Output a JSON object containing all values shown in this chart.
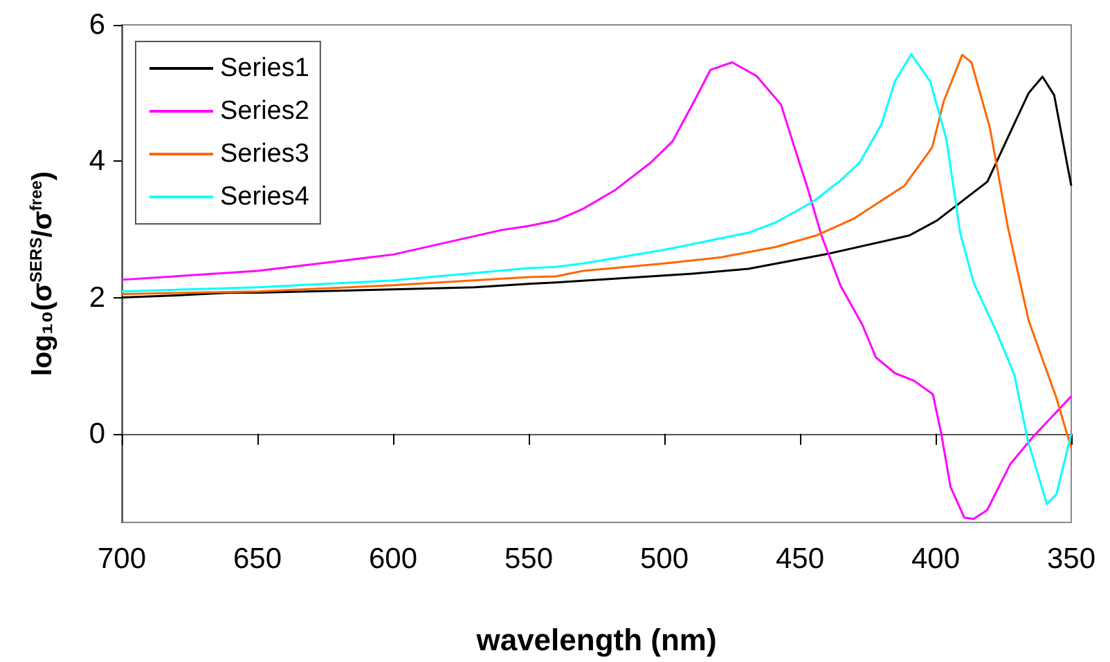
{
  "chart_data": {
    "type": "line",
    "xlabel": "wavelength (nm)",
    "ylabel": "log₁₀(σ$^{SERS}$/σ$^{free}$)",
    "xlim": [
      700,
      350
    ],
    "xticks": [
      700,
      650,
      600,
      550,
      500,
      450,
      400,
      350
    ],
    "ylim": [
      -1.3,
      6
    ],
    "yticks": [
      0,
      2,
      4,
      6
    ],
    "legend": "top left",
    "marker": "none",
    "line_style": "solid",
    "series": [
      {
        "name": "Series1",
        "color": "#000000",
        "x": [
          700,
          680,
          660,
          650,
          600,
          570,
          550,
          540,
          489.4,
          469,
          438.6,
          409.7,
          399.5,
          380.9,
          372.4,
          365.7,
          360.6,
          356.3,
          350
        ],
        "values": [
          2.0,
          2.03,
          2.07,
          2.07,
          2.12,
          2.15,
          2.2,
          2.22,
          2.35,
          2.42,
          2.65,
          2.91,
          3.13,
          3.7,
          4.43,
          5.0,
          5.24,
          4.97,
          3.64
        ]
      },
      {
        "name": "Series2",
        "color": "#ff00ff",
        "x": [
          700,
          650,
          600,
          560,
          550,
          540,
          530,
          518,
          505,
          497,
          489,
          483,
          475,
          466,
          457,
          452,
          447,
          442,
          435,
          427,
          422,
          415,
          408,
          401,
          398,
          394.5,
          389.4,
          386,
          381,
          372.4,
          364,
          350
        ],
        "values": [
          2.26,
          2.39,
          2.63,
          2.99,
          3.05,
          3.13,
          3.3,
          3.58,
          3.98,
          4.29,
          4.88,
          5.34,
          5.45,
          5.25,
          4.83,
          4.2,
          3.58,
          2.9,
          2.17,
          1.6,
          1.12,
          0.89,
          0.78,
          0.58,
          0.02,
          -0.78,
          -1.23,
          -1.25,
          -1.12,
          -0.44,
          -0.04,
          0.55
        ]
      },
      {
        "name": "Series3",
        "color": "#ff6600",
        "x": [
          700,
          650,
          600,
          550,
          540,
          530,
          500,
          479,
          459,
          444,
          430,
          411.5,
          401.3,
          397,
          390.2,
          386.8,
          380,
          373.3,
          365.7,
          355.5,
          350
        ],
        "values": [
          2.05,
          2.09,
          2.18,
          2.3,
          2.31,
          2.39,
          2.5,
          2.59,
          2.74,
          2.91,
          3.16,
          3.64,
          4.2,
          4.88,
          5.56,
          5.45,
          4.49,
          3.02,
          1.66,
          0.53,
          -0.21
        ]
      },
      {
        "name": "Series4",
        "color": "#00ffff",
        "x": [
          700,
          650,
          600,
          550,
          540,
          530,
          500,
          469,
          459,
          445,
          435,
          428,
          420,
          415,
          409,
          402,
          396,
          391,
          386,
          377.5,
          371,
          366,
          359,
          355.5,
          350
        ],
        "values": [
          2.09,
          2.15,
          2.25,
          2.43,
          2.45,
          2.5,
          2.7,
          2.95,
          3.1,
          3.41,
          3.72,
          3.98,
          4.54,
          5.17,
          5.57,
          5.17,
          4.32,
          2.96,
          2.22,
          1.49,
          0.87,
          -0.1,
          -1.03,
          -0.89,
          0.0
        ]
      }
    ]
  }
}
